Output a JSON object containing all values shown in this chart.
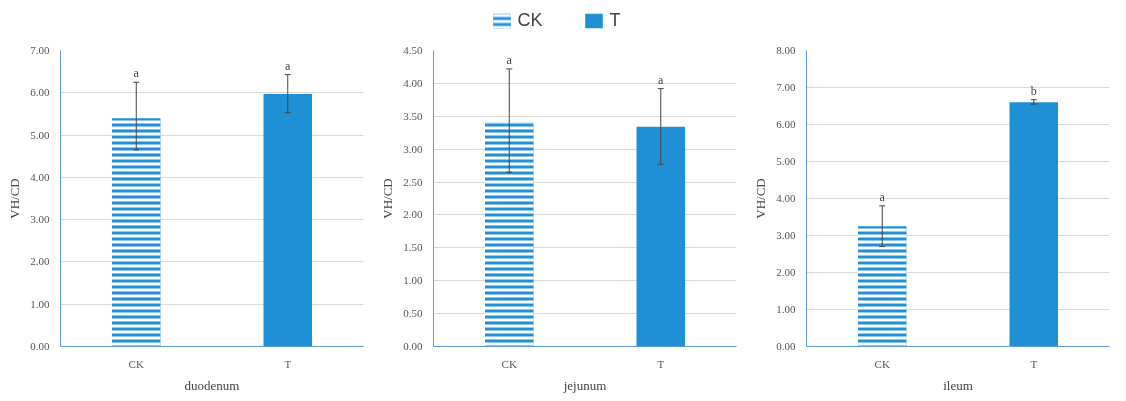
{
  "chart_data": [
    {
      "type": "bar",
      "xlabel": "duodenum",
      "ylabel": "VH/CD",
      "categories": [
        "CK",
        "T"
      ],
      "series": [
        {
          "color": "#1f8fd6",
          "values": [
            5.4,
            null
          ],
          "errors": [
            [
              4.65,
              6.25
            ],
            null
          ]
        },
        {
          "color": "#1f8fd6",
          "values": [
            null,
            5.97
          ],
          "errors": [
            null,
            [
              5.53,
              6.43
            ]
          ]
        }
      ],
      "ylim": [
        0,
        7
      ],
      "yticks": [
        {
          "value": 0,
          "label": "0.00"
        },
        {
          "value": 1,
          "label": "1.00"
        },
        {
          "value": 2,
          "label": "2.00"
        },
        {
          "value": 3,
          "label": "3.00"
        },
        {
          "value": 4,
          "label": "4.00"
        },
        {
          "value": 5,
          "label": "5.00"
        },
        {
          "value": 6,
          "label": "6.00"
        },
        {
          "value": 7,
          "label": "7.00"
        }
      ],
      "annotations": [
        {
          "text": "a",
          "x": "CK",
          "y": 6.25
        },
        {
          "text": "a",
          "x": "T",
          "y": 6.43
        }
      ],
      "grid": "y"
    },
    {
      "type": "bar",
      "xlabel": "jejunum",
      "ylabel": "VH/CD",
      "categories": [
        "CK",
        "T"
      ],
      "series": [
        {
          "name": "CK",
          "color": "#1f8fd6",
          "values": [
            3.4,
            null
          ],
          "errors": [
            [
              2.65,
              4.22
            ],
            null
          ]
        },
        {
          "name": "T",
          "color": "#1f8fd6",
          "values": [
            null,
            3.34
          ],
          "errors": [
            null,
            [
              2.77,
              3.92
            ]
          ]
        }
      ],
      "ylim": [
        0,
        4.5
      ],
      "yticks": [
        {
          "value": 0,
          "label": "0.00"
        },
        {
          "value": 0.5,
          "label": "0.50"
        },
        {
          "value": 1,
          "label": "1.00"
        },
        {
          "value": 1.5,
          "label": "1.50"
        },
        {
          "value": 2,
          "label": "2.00"
        },
        {
          "value": 2.5,
          "label": "2.50"
        },
        {
          "value": 3,
          "label": "3.00"
        },
        {
          "value": 3.5,
          "label": "3.50"
        },
        {
          "value": 4,
          "label": "4.00"
        },
        {
          "value": 4.5,
          "label": "4.50"
        }
      ],
      "annotations": [
        {
          "text": "a",
          "x": "CK",
          "y": 4.22
        },
        {
          "text": "a",
          "x": "T",
          "y": 3.92
        }
      ],
      "grid": "y",
      "legend": "top"
    },
    {
      "type": "bar",
      "xlabel": "ileum",
      "ylabel": "VH/CD",
      "categories": [
        "CK",
        "T"
      ],
      "series": [
        {
          "color": "#1f8fd6",
          "values": [
            3.25,
            null
          ],
          "errors": [
            [
              2.7,
              3.8
            ],
            null
          ]
        },
        {
          "color": "#1f8fd6",
          "values": [
            null,
            6.6
          ],
          "errors": [
            null,
            [
              6.55,
              6.67
            ]
          ]
        }
      ],
      "ylim": [
        0,
        8
      ],
      "yticks": [
        {
          "value": 0,
          "label": "0.00"
        },
        {
          "value": 1,
          "label": "1.00"
        },
        {
          "value": 2,
          "label": "2.00"
        },
        {
          "value": 3,
          "label": "3.00"
        },
        {
          "value": 4,
          "label": "4.00"
        },
        {
          "value": 5,
          "label": "5.00"
        },
        {
          "value": 6,
          "label": "6.00"
        },
        {
          "value": 7,
          "label": "7.00"
        },
        {
          "value": 8,
          "label": "8.00"
        }
      ],
      "annotations": [
        {
          "text": "a",
          "x": "CK",
          "y": 3.8
        },
        {
          "text": "b",
          "x": "T",
          "y": 6.67
        }
      ],
      "grid": "y"
    }
  ]
}
